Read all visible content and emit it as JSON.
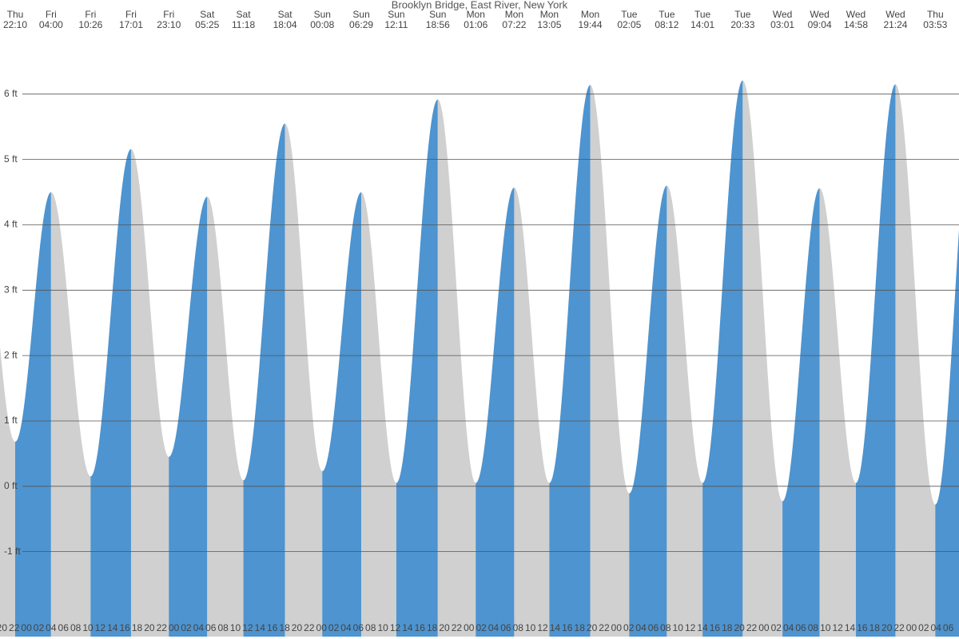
{
  "chart_data": {
    "type": "tide",
    "title": "Brooklyn Bridge, East River, New York",
    "colors": {
      "rising": "#4d94d0",
      "falling": "#d0d0d0",
      "grid": "#555555"
    },
    "events": [
      {
        "day": "Thu",
        "time": "22:10",
        "height": 0.68
      },
      {
        "day": "Fri",
        "time": "04:00",
        "height": 4.5
      },
      {
        "day": "Fri",
        "time": "10:26",
        "height": 0.15
      },
      {
        "day": "Fri",
        "time": "17:01",
        "height": 5.16
      },
      {
        "day": "Fri",
        "time": "23:10",
        "height": 0.45
      },
      {
        "day": "Sat",
        "time": "05:25",
        "height": 4.43
      },
      {
        "day": "Sat",
        "time": "11:18",
        "height": 0.09
      },
      {
        "day": "Sat",
        "time": "18:04",
        "height": 5.55
      },
      {
        "day": "Sun",
        "time": "00:08",
        "height": 0.23
      },
      {
        "day": "Sun",
        "time": "06:29",
        "height": 4.5
      },
      {
        "day": "Sun",
        "time": "12:11",
        "height": 0.05
      },
      {
        "day": "Sun",
        "time": "18:56",
        "height": 5.92
      },
      {
        "day": "Mon",
        "time": "01:06",
        "height": 0.05
      },
      {
        "day": "Mon",
        "time": "07:22",
        "height": 4.57
      },
      {
        "day": "Mon",
        "time": "13:05",
        "height": 0.05
      },
      {
        "day": "Mon",
        "time": "19:44",
        "height": 6.14
      },
      {
        "day": "Tue",
        "time": "02:05",
        "height": -0.11
      },
      {
        "day": "Tue",
        "time": "08:12",
        "height": 4.6
      },
      {
        "day": "Tue",
        "time": "14:01",
        "height": 0.05
      },
      {
        "day": "Tue",
        "time": "20:33",
        "height": 6.21
      },
      {
        "day": "Wed",
        "time": "03:01",
        "height": -0.23
      },
      {
        "day": "Wed",
        "time": "09:04",
        "height": 4.56
      },
      {
        "day": "Wed",
        "time": "14:58",
        "height": 0.05
      },
      {
        "day": "Wed",
        "time": "21:24",
        "height": 6.15
      },
      {
        "day": "Thu",
        "time": "03:53",
        "height": -0.28
      }
    ],
    "ylim": [
      -2.3,
      7
    ],
    "yticks": [
      {
        "value": -1,
        "label": "-1 ft"
      },
      {
        "value": 0,
        "label": "0 ft"
      },
      {
        "value": 1,
        "label": "1 ft"
      },
      {
        "value": 2,
        "label": "2 ft"
      },
      {
        "value": 3,
        "label": "3 ft"
      },
      {
        "value": 4,
        "label": "4 ft"
      },
      {
        "value": 5,
        "label": "5 ft"
      },
      {
        "value": 6,
        "label": "6 ft"
      }
    ],
    "hour_ticks": [
      "20",
      "22",
      "00",
      "02",
      "04",
      "06",
      "08",
      "10",
      "12",
      "14",
      "16",
      "18",
      "20",
      "22",
      "00",
      "02",
      "04",
      "06",
      "08",
      "10",
      "12",
      "14",
      "16",
      "18",
      "20",
      "22",
      "00",
      "02",
      "04",
      "06",
      "08",
      "10",
      "12",
      "14",
      "16",
      "18",
      "20",
      "22",
      "00",
      "02",
      "04",
      "06",
      "08",
      "10",
      "12",
      "14",
      "16",
      "18",
      "20",
      "22",
      "00",
      "02",
      "04",
      "06",
      "08",
      "10",
      "12",
      "14",
      "16",
      "18",
      "20",
      "22",
      "00",
      "02",
      "04",
      "06",
      "08",
      "10",
      "12",
      "14",
      "16",
      "18",
      "20",
      "22",
      "00",
      "02",
      "04",
      "06"
    ]
  }
}
